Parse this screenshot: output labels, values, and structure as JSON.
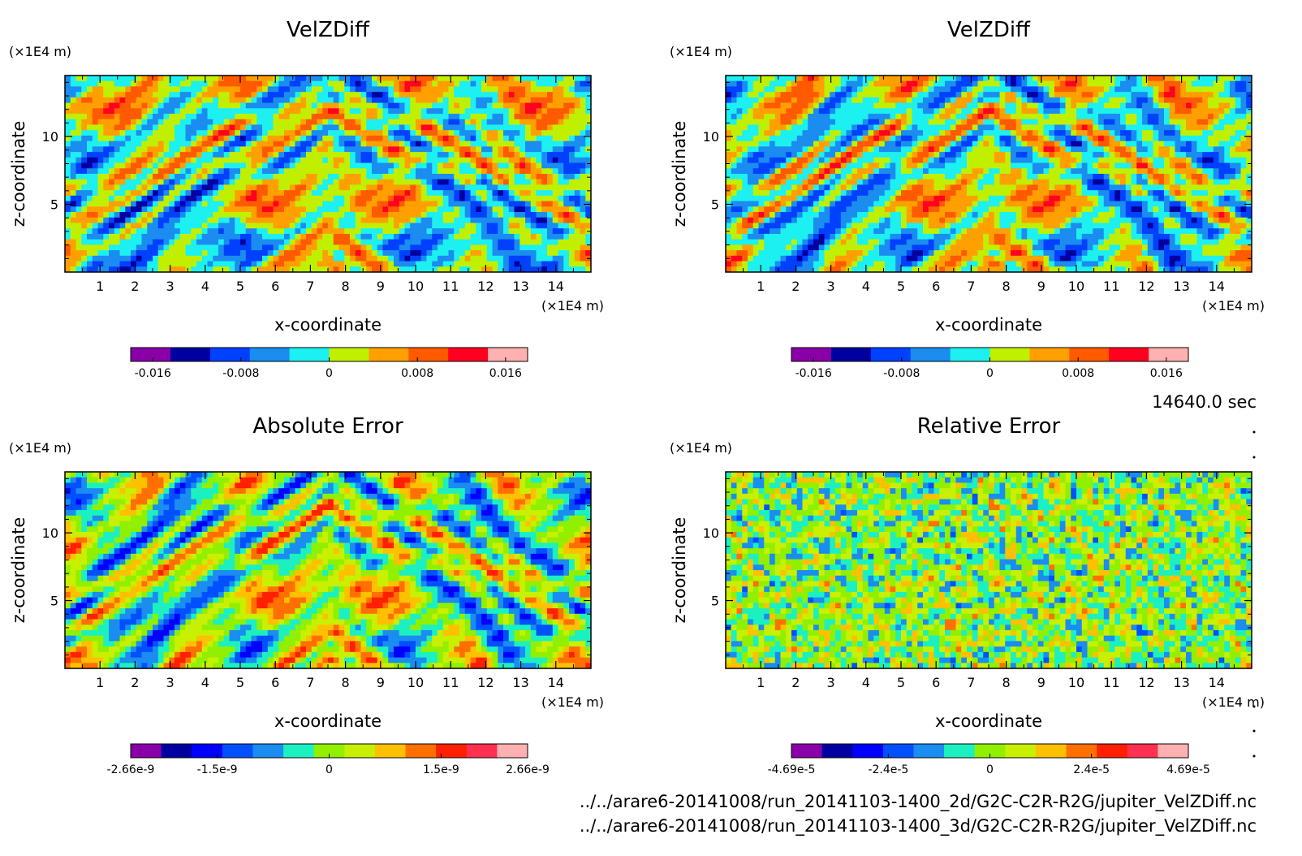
{
  "figure": {
    "time_label": "14640.0 sec",
    "file_paths": [
      "../../arare6-20141008/run_20141103-1400_2d/G2C-C2R-R2G/jupiter_VelZDiff.nc",
      "../../arare6-20141008/run_20141103-1400_3d/G2C-C2R-R2G/jupiter_VelZDiff.nc"
    ]
  },
  "chart_data": [
    {
      "type": "heatmap",
      "title": "VelZDiff",
      "xlabel": "x-coordinate",
      "ylabel": "z-coordinate",
      "x_unit": "(×1E4 m)",
      "y_unit": "(×1E4 m)",
      "xlim": [
        0,
        15
      ],
      "ylim": [
        0,
        14.5
      ],
      "x_ticks": [
        1,
        2,
        3,
        4,
        5,
        6,
        7,
        8,
        9,
        10,
        11,
        12,
        13,
        14
      ],
      "y_ticks": [
        5,
        10
      ],
      "colorbar": {
        "colors": [
          "#8a00a8",
          "#0000a0",
          "#0040ff",
          "#1b8cf0",
          "#1cf0f0",
          "#c0f000",
          "#ffa000",
          "#ff5a00",
          "#ff0020",
          "#ffb0b0"
        ],
        "ticks": [
          "-0.016",
          "-0.008",
          "0",
          "0.008",
          "0.016"
        ],
        "tick_values": [
          -0.016,
          -0.008,
          0,
          0.008,
          0.016
        ],
        "range": [
          -0.018,
          0.018
        ]
      },
      "pattern": "wave"
    },
    {
      "type": "heatmap",
      "title": "VelZDiff",
      "xlabel": "x-coordinate",
      "ylabel": "z-coordinate",
      "x_unit": "(×1E4 m)",
      "y_unit": "(×1E4 m)",
      "xlim": [
        0,
        15
      ],
      "ylim": [
        0,
        14.5
      ],
      "x_ticks": [
        1,
        2,
        3,
        4,
        5,
        6,
        7,
        8,
        9,
        10,
        11,
        12,
        13,
        14
      ],
      "y_ticks": [
        5,
        10
      ],
      "colorbar": {
        "colors": [
          "#8a00a8",
          "#0000a0",
          "#0040ff",
          "#1b8cf0",
          "#1cf0f0",
          "#c0f000",
          "#ffa000",
          "#ff5a00",
          "#ff0020",
          "#ffb0b0"
        ],
        "ticks": [
          "-0.016",
          "-0.008",
          "0",
          "0.008",
          "0.016"
        ],
        "tick_values": [
          -0.016,
          -0.008,
          0,
          0.008,
          0.016
        ],
        "range": [
          -0.018,
          0.018
        ]
      },
      "pattern": "wave"
    },
    {
      "type": "heatmap",
      "title": "Absolute Error",
      "xlabel": "x-coordinate",
      "ylabel": "z-coordinate",
      "x_unit": "(×1E4 m)",
      "y_unit": "(×1E4 m)",
      "xlim": [
        0,
        15
      ],
      "ylim": [
        0,
        14.5
      ],
      "x_ticks": [
        1,
        2,
        3,
        4,
        5,
        6,
        7,
        8,
        9,
        10,
        11,
        12,
        13,
        14
      ],
      "y_ticks": [
        5,
        10
      ],
      "colorbar": {
        "colors": [
          "#8a00a8",
          "#0000a0",
          "#0000ff",
          "#0050ff",
          "#1b8cf0",
          "#1cf0c0",
          "#90f000",
          "#c8f000",
          "#ffc000",
          "#ff7000",
          "#ff2000",
          "#ff3050",
          "#ffb0b0"
        ],
        "ticks": [
          "-2.66e-9",
          "-1.5e-9",
          "0",
          "1.5e-9",
          "2.66e-9"
        ],
        "tick_values": [
          -2.66e-09,
          -1.5e-09,
          0,
          1.5e-09,
          2.66e-09
        ],
        "range": [
          -2.66e-09,
          2.66e-09
        ]
      },
      "pattern": "wave"
    },
    {
      "type": "heatmap",
      "title": "Relative Error",
      "xlabel": "x-coordinate",
      "ylabel": "z-coordinate",
      "x_unit": "(×1E4 m)",
      "y_unit": "(×1E4 m)",
      "xlim": [
        0,
        15
      ],
      "ylim": [
        0,
        14.5
      ],
      "x_ticks": [
        1,
        2,
        3,
        4,
        5,
        6,
        7,
        8,
        9,
        10,
        11,
        12,
        13,
        14
      ],
      "y_ticks": [
        5,
        10
      ],
      "colorbar": {
        "colors": [
          "#8a00a8",
          "#0000a0",
          "#0000ff",
          "#0050ff",
          "#1b8cf0",
          "#1cf0c0",
          "#90f000",
          "#c8f000",
          "#ffc000",
          "#ff7000",
          "#ff2000",
          "#ff3050",
          "#ffb0b0"
        ],
        "ticks": [
          "-4.69e-5",
          "-2.4e-5",
          "0",
          "2.4e-5",
          "4.69e-5"
        ],
        "tick_values": [
          -4.69e-05,
          -2.4e-05,
          0,
          2.4e-05,
          4.69e-05
        ],
        "range": [
          -4.69e-05,
          4.69e-05
        ]
      },
      "pattern": "noise"
    }
  ]
}
